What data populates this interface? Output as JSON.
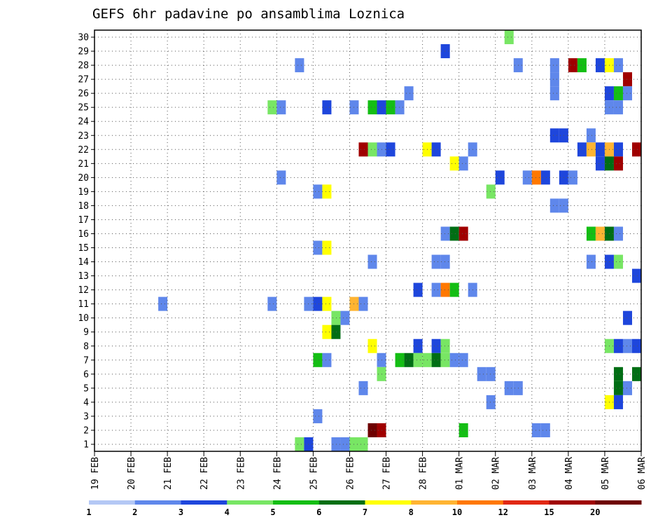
{
  "chart_data": {
    "type": "heatmap",
    "title": "GEFS 6hr padavine po ansamblima Loznica",
    "xlabel": "",
    "ylabel": "",
    "x_tick_labels": [
      "19 FEB",
      "20 FEB",
      "21 FEB",
      "22 FEB",
      "23 FEB",
      "24 FEB",
      "25 FEB",
      "26 FEB",
      "27 FEB",
      "28 FEB",
      "01 MAR",
      "02 MAR",
      "03 MAR",
      "04 MAR",
      "05 MAR",
      "06 MAR"
    ],
    "x_unit": "6-hour steps from 19 FEB 00z",
    "xlim": [
      0,
      60
    ],
    "y_tick_labels": [
      "1",
      "2",
      "3",
      "4",
      "5",
      "6",
      "7",
      "8",
      "9",
      "10",
      "11",
      "12",
      "13",
      "14",
      "15",
      "16",
      "17",
      "18",
      "19",
      "20",
      "21",
      "22",
      "23",
      "24",
      "25",
      "26",
      "27",
      "28",
      "29",
      "30"
    ],
    "ylim": [
      0.5,
      30.5
    ],
    "grid": true,
    "colorbar": {
      "placement": "bottom",
      "labels": [
        "1",
        "2",
        "3",
        "4",
        "5",
        "6",
        "7",
        "8",
        "10",
        "12",
        "15",
        "20"
      ],
      "colors": [
        "#b4c8f5",
        "#5f87eb",
        "#1e46dc",
        "#78e664",
        "#14be14",
        "#006e14",
        "#ffff00",
        "#ffb432",
        "#ff7800",
        "#e12814",
        "#a00000",
        "#6e0000"
      ]
    },
    "cells": [
      [
        46,
        30,
        3
      ],
      [
        39,
        29,
        2
      ],
      [
        23,
        28,
        1
      ],
      [
        47,
        28,
        1
      ],
      [
        51,
        28,
        1
      ],
      [
        53,
        28,
        10
      ],
      [
        54,
        28,
        4
      ],
      [
        56,
        28,
        2
      ],
      [
        57,
        28,
        6
      ],
      [
        58,
        28,
        1
      ],
      [
        51,
        27,
        1
      ],
      [
        59,
        27,
        10
      ],
      [
        35,
        26,
        1
      ],
      [
        51,
        26,
        1
      ],
      [
        57,
        26,
        2
      ],
      [
        58,
        26,
        4
      ],
      [
        59,
        26,
        1
      ],
      [
        20,
        25,
        3
      ],
      [
        21,
        25,
        1
      ],
      [
        26,
        25,
        2
      ],
      [
        29,
        25,
        1
      ],
      [
        31,
        25,
        4
      ],
      [
        32,
        25,
        2
      ],
      [
        33,
        25,
        4
      ],
      [
        34,
        25,
        1
      ],
      [
        57,
        25,
        1
      ],
      [
        58,
        25,
        1
      ],
      [
        51,
        23,
        2
      ],
      [
        52,
        23,
        2
      ],
      [
        55,
        23,
        1
      ],
      [
        30,
        22,
        10
      ],
      [
        31,
        22,
        3
      ],
      [
        32,
        22,
        1
      ],
      [
        33,
        22,
        2
      ],
      [
        37,
        22,
        6
      ],
      [
        38,
        22,
        2
      ],
      [
        42,
        22,
        1
      ],
      [
        54,
        22,
        2
      ],
      [
        55,
        22,
        7
      ],
      [
        56,
        22,
        2
      ],
      [
        57,
        22,
        7
      ],
      [
        58,
        22,
        2
      ],
      [
        60,
        22,
        10
      ],
      [
        40,
        21,
        6
      ],
      [
        41,
        21,
        1
      ],
      [
        56,
        21,
        2
      ],
      [
        57,
        21,
        5
      ],
      [
        58,
        21,
        10
      ],
      [
        21,
        20,
        1
      ],
      [
        45,
        20,
        2
      ],
      [
        48,
        20,
        1
      ],
      [
        49,
        20,
        8
      ],
      [
        50,
        20,
        2
      ],
      [
        52,
        20,
        2
      ],
      [
        53,
        20,
        1
      ],
      [
        25,
        19,
        1
      ],
      [
        26,
        19,
        6
      ],
      [
        44,
        19,
        3
      ],
      [
        51,
        18,
        1
      ],
      [
        52,
        18,
        1
      ],
      [
        39,
        16,
        1
      ],
      [
        40,
        16,
        5
      ],
      [
        41,
        16,
        10
      ],
      [
        55,
        16,
        4
      ],
      [
        56,
        16,
        7
      ],
      [
        57,
        16,
        5
      ],
      [
        58,
        16,
        1
      ],
      [
        25,
        15,
        1
      ],
      [
        26,
        15,
        6
      ],
      [
        31,
        14,
        1
      ],
      [
        38,
        14,
        1
      ],
      [
        39,
        14,
        1
      ],
      [
        55,
        14,
        1
      ],
      [
        57,
        14,
        2
      ],
      [
        58,
        14,
        3
      ],
      [
        60,
        13,
        2
      ],
      [
        36,
        12,
        2
      ],
      [
        38,
        12,
        1
      ],
      [
        39,
        12,
        8
      ],
      [
        40,
        12,
        4
      ],
      [
        42,
        12,
        1
      ],
      [
        8,
        11,
        1
      ],
      [
        20,
        11,
        1
      ],
      [
        24,
        11,
        1
      ],
      [
        25,
        11,
        2
      ],
      [
        26,
        11,
        6
      ],
      [
        29,
        11,
        7
      ],
      [
        30,
        11,
        1
      ],
      [
        27,
        10,
        3
      ],
      [
        28,
        10,
        1
      ],
      [
        59,
        10,
        2
      ],
      [
        26,
        9,
        6
      ],
      [
        27,
        9,
        5
      ],
      [
        31,
        8,
        6
      ],
      [
        36,
        8,
        2
      ],
      [
        38,
        8,
        2
      ],
      [
        39,
        8,
        3
      ],
      [
        57,
        8,
        3
      ],
      [
        58,
        8,
        2
      ],
      [
        59,
        8,
        1
      ],
      [
        60,
        8,
        2
      ],
      [
        25,
        7,
        4
      ],
      [
        26,
        7,
        1
      ],
      [
        32,
        7,
        1
      ],
      [
        34,
        7,
        4
      ],
      [
        35,
        7,
        5
      ],
      [
        36,
        7,
        3
      ],
      [
        37,
        7,
        3
      ],
      [
        38,
        7,
        5
      ],
      [
        39,
        7,
        3
      ],
      [
        40,
        7,
        1
      ],
      [
        41,
        7,
        1
      ],
      [
        32,
        6,
        3
      ],
      [
        43,
        6,
        1
      ],
      [
        44,
        6,
        1
      ],
      [
        58,
        6,
        5
      ],
      [
        60,
        6,
        5
      ],
      [
        30,
        5,
        1
      ],
      [
        46,
        5,
        1
      ],
      [
        47,
        5,
        1
      ],
      [
        58,
        5,
        5
      ],
      [
        59,
        5,
        1
      ],
      [
        44,
        4,
        1
      ],
      [
        57,
        4,
        6
      ],
      [
        58,
        4,
        2
      ],
      [
        25,
        3,
        1
      ],
      [
        31,
        2,
        11
      ],
      [
        32,
        2,
        10
      ],
      [
        41,
        2,
        4
      ],
      [
        49,
        2,
        1
      ],
      [
        50,
        2,
        1
      ],
      [
        23,
        1,
        3
      ],
      [
        24,
        1,
        2
      ],
      [
        27,
        1,
        1
      ],
      [
        28,
        1,
        1
      ],
      [
        29,
        1,
        3
      ],
      [
        30,
        1,
        3
      ]
    ]
  }
}
